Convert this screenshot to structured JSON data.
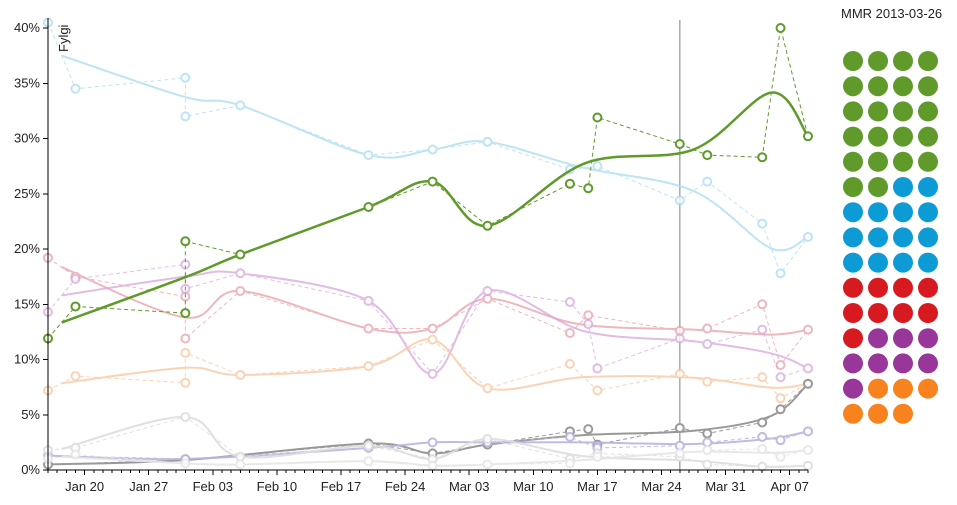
{
  "chart_data": {
    "type": "line",
    "ylabel": "Fylgi",
    "y_ticks": [
      "0%",
      "5%",
      "10%",
      "15%",
      "20%",
      "25%",
      "30%",
      "35%",
      "40%"
    ],
    "ylim": [
      0,
      40
    ],
    "x_ticks": [
      "Jan 20",
      "Jan 27",
      "Feb 03",
      "Feb 10",
      "Feb 17",
      "Feb 24",
      "Mar 03",
      "Mar 10",
      "Mar 17",
      "Mar 24",
      "Mar 31",
      "Apr 07"
    ],
    "xlim": [
      "2013-01-16",
      "2013-04-09"
    ],
    "marker_date": "2013-03-26",
    "grid": false,
    "series": [
      {
        "key": "lightblue",
        "color": "#a9dcf0",
        "opacity": 0.75,
        "points": [
          [
            "2013-01-16",
            40.5
          ],
          [
            "2013-01-19",
            34.5
          ],
          [
            "2013-01-31",
            35.5
          ],
          [
            "2013-01-31",
            32
          ],
          [
            "2013-02-06",
            33
          ],
          [
            "2013-02-20",
            28.5
          ],
          [
            "2013-02-27",
            29
          ],
          [
            "2013-03-05",
            29.7
          ],
          [
            "2013-03-14",
            27.2
          ],
          [
            "2013-03-17",
            27.5
          ],
          [
            "2013-03-26",
            24.4
          ],
          [
            "2013-03-29",
            26.1
          ],
          [
            "2013-04-04",
            22.3
          ],
          [
            "2013-04-06",
            17.8
          ],
          [
            "2013-04-09",
            21.1
          ]
        ]
      },
      {
        "key": "green",
        "color": "#5f9a2b",
        "opacity": 1,
        "bold": true,
        "points": [
          [
            "2013-01-16",
            11.9
          ],
          [
            "2013-01-19",
            14.8
          ],
          [
            "2013-01-31",
            14.2
          ],
          [
            "2013-01-31",
            20.7
          ],
          [
            "2013-02-06",
            19.5
          ],
          [
            "2013-02-20",
            23.8
          ],
          [
            "2013-02-27",
            26.1
          ],
          [
            "2013-03-05",
            22.1
          ],
          [
            "2013-03-14",
            25.9
          ],
          [
            "2013-03-16",
            25.5
          ],
          [
            "2013-03-17",
            31.9
          ],
          [
            "2013-03-26",
            29.5
          ],
          [
            "2013-03-29",
            28.5
          ],
          [
            "2013-04-04",
            28.3
          ],
          [
            "2013-04-06",
            40
          ],
          [
            "2013-04-09",
            30.2
          ]
        ]
      },
      {
        "key": "pink",
        "color": "#e8a0a8",
        "opacity": 0.75,
        "points": [
          [
            "2013-01-16",
            19.2
          ],
          [
            "2013-01-19",
            17.5
          ],
          [
            "2013-01-31",
            15.7
          ],
          [
            "2013-01-31",
            11.9
          ],
          [
            "2013-02-06",
            16.2
          ],
          [
            "2013-02-20",
            12.8
          ],
          [
            "2013-02-27",
            12.8
          ],
          [
            "2013-03-05",
            15.5
          ],
          [
            "2013-03-14",
            12.4
          ],
          [
            "2013-03-16",
            14
          ],
          [
            "2013-03-26",
            12.6
          ],
          [
            "2013-03-29",
            12.8
          ],
          [
            "2013-04-04",
            15
          ],
          [
            "2013-04-06",
            9.5
          ],
          [
            "2013-04-09",
            12.7
          ]
        ]
      },
      {
        "key": "purple",
        "color": "#d7a7dc",
        "opacity": 0.75,
        "points": [
          [
            "2013-01-16",
            14.3
          ],
          [
            "2013-01-19",
            17.3
          ],
          [
            "2013-01-31",
            18.6
          ],
          [
            "2013-01-31",
            16.4
          ],
          [
            "2013-02-06",
            17.8
          ],
          [
            "2013-02-20",
            15.3
          ],
          [
            "2013-02-27",
            8.7
          ],
          [
            "2013-03-05",
            16.2
          ],
          [
            "2013-03-14",
            15.2
          ],
          [
            "2013-03-16",
            13.2
          ],
          [
            "2013-03-17",
            9.2
          ],
          [
            "2013-03-26",
            11.9
          ],
          [
            "2013-03-29",
            11.4
          ],
          [
            "2013-04-04",
            12.7
          ],
          [
            "2013-04-06",
            8.4
          ],
          [
            "2013-04-09",
            9.2
          ]
        ]
      },
      {
        "key": "orange",
        "color": "#f9c9a4",
        "opacity": 0.8,
        "points": [
          [
            "2013-01-16",
            7.2
          ],
          [
            "2013-01-19",
            8.5
          ],
          [
            "2013-01-31",
            7.9
          ],
          [
            "2013-01-31",
            10.6
          ],
          [
            "2013-02-06",
            8.6
          ],
          [
            "2013-02-20",
            9.4
          ],
          [
            "2013-02-27",
            11.8
          ],
          [
            "2013-03-05",
            7.4
          ],
          [
            "2013-03-14",
            9.6
          ],
          [
            "2013-03-17",
            7.2
          ],
          [
            "2013-03-26",
            8.7
          ],
          [
            "2013-03-29",
            8.0
          ],
          [
            "2013-04-04",
            8.4
          ],
          [
            "2013-04-06",
            6.5
          ],
          [
            "2013-04-09",
            7.8
          ]
        ]
      },
      {
        "key": "grey",
        "color": "#999999",
        "opacity": 1,
        "points": [
          [
            "2013-01-16",
            0.5
          ],
          [
            "2013-01-31",
            0.9
          ],
          [
            "2013-02-20",
            2.4
          ],
          [
            "2013-02-27",
            1.5
          ],
          [
            "2013-03-05",
            2.3
          ],
          [
            "2013-03-14",
            3.5
          ],
          [
            "2013-03-16",
            3.7
          ],
          [
            "2013-03-17",
            2.3
          ],
          [
            "2013-03-26",
            3.8
          ],
          [
            "2013-03-29",
            3.3
          ],
          [
            "2013-04-04",
            4.3
          ],
          [
            "2013-04-06",
            5.5
          ],
          [
            "2013-04-09",
            7.8
          ]
        ]
      },
      {
        "key": "lavender",
        "color": "#b8b5e0",
        "opacity": 0.9,
        "points": [
          [
            "2013-01-16",
            1.3
          ],
          [
            "2013-01-31",
            1.0
          ],
          [
            "2013-02-20",
            2.0
          ],
          [
            "2013-02-27",
            2.5
          ],
          [
            "2013-03-05",
            2.5
          ],
          [
            "2013-03-14",
            3.0
          ],
          [
            "2013-03-17",
            2.0
          ],
          [
            "2013-03-26",
            2.2
          ],
          [
            "2013-03-29",
            2.5
          ],
          [
            "2013-04-04",
            3.0
          ],
          [
            "2013-04-06",
            2.7
          ],
          [
            "2013-04-09",
            3.5
          ]
        ]
      },
      {
        "key": "faint1",
        "color": "#dddddd",
        "opacity": 0.9,
        "points": [
          [
            "2013-01-16",
            1.8
          ],
          [
            "2013-01-19",
            2.0
          ],
          [
            "2013-01-31",
            4.8
          ],
          [
            "2013-02-06",
            1.2
          ],
          [
            "2013-02-20",
            2.2
          ],
          [
            "2013-02-27",
            1.0
          ],
          [
            "2013-03-05",
            2.8
          ],
          [
            "2013-03-14",
            1.0
          ],
          [
            "2013-03-17",
            1.5
          ],
          [
            "2013-03-26",
            1.2
          ],
          [
            "2013-03-29",
            0.5
          ],
          [
            "2013-04-04",
            0.3
          ],
          [
            "2013-04-09",
            0.4
          ]
        ]
      },
      {
        "key": "faint2",
        "color": "#e6e6e6",
        "opacity": 0.9,
        "points": [
          [
            "2013-01-16",
            1.0
          ],
          [
            "2013-01-19",
            1.4
          ],
          [
            "2013-01-31",
            0.6
          ],
          [
            "2013-02-06",
            0.5
          ],
          [
            "2013-02-20",
            0.8
          ],
          [
            "2013-02-27",
            0.4
          ],
          [
            "2013-03-05",
            0.5
          ],
          [
            "2013-03-14",
            0.6
          ],
          [
            "2013-03-17",
            1.2
          ],
          [
            "2013-03-26",
            1.5
          ],
          [
            "2013-03-29",
            1.8
          ],
          [
            "2013-04-04",
            1.9
          ],
          [
            "2013-04-06",
            1.2
          ],
          [
            "2013-04-09",
            1.8
          ]
        ]
      }
    ]
  },
  "snapshot": {
    "title": "MMR 2013-03-26",
    "dots": [
      {
        "color": "#5f9a2b",
        "count": 22
      },
      {
        "color": "#0c9bd4",
        "count": 14
      },
      {
        "color": "#d71920",
        "count": 9
      },
      {
        "color": "#98369a",
        "count": 8
      },
      {
        "color": "#f7821e",
        "count": 6
      }
    ]
  }
}
